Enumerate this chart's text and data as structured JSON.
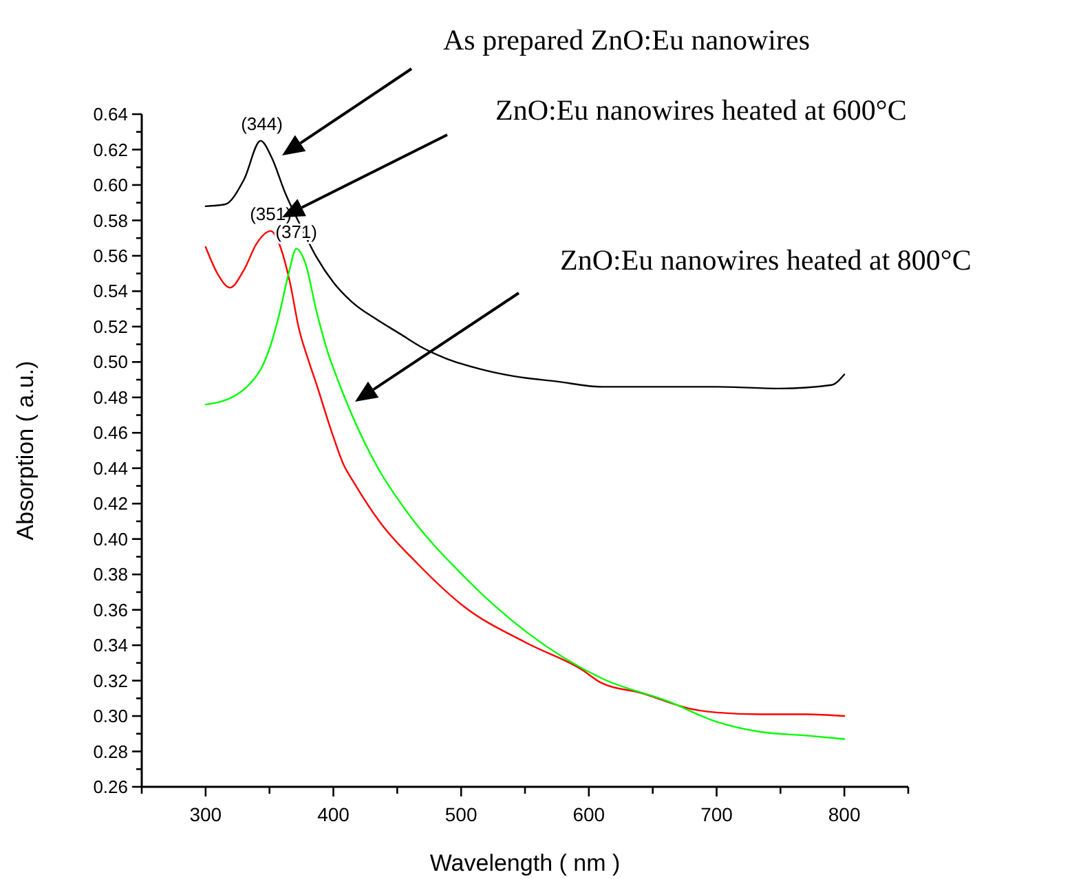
{
  "chart_data": {
    "type": "line",
    "xlabel": "Wavelength ( nm )",
    "ylabel": "Absorption ( a.u.)",
    "xlim": [
      250,
      850
    ],
    "ylim": [
      0.26,
      0.64
    ],
    "xticks": [
      {
        "value": 250,
        "label": null
      },
      300,
      {
        "value": 350,
        "label": null
      },
      400,
      {
        "value": 450,
        "label": null
      },
      500,
      {
        "value": 550,
        "label": null
      },
      600,
      {
        "value": 650,
        "label": null
      },
      700,
      {
        "value": 750,
        "label": null
      },
      800,
      {
        "value": 850,
        "label": null
      }
    ],
    "yticks": [
      {
        "value": 0.26,
        "label": "0.26"
      },
      {
        "value": 0.27,
        "label": null
      },
      {
        "value": 0.28,
        "label": "0.28"
      },
      {
        "value": 0.29,
        "label": null
      },
      {
        "value": 0.3,
        "label": "0.30"
      },
      {
        "value": 0.31,
        "label": null
      },
      {
        "value": 0.32,
        "label": "0.32"
      },
      {
        "value": 0.33,
        "label": null
      },
      {
        "value": 0.34,
        "label": "0.34"
      },
      {
        "value": 0.35,
        "label": null
      },
      {
        "value": 0.36,
        "label": "0.36"
      },
      {
        "value": 0.37,
        "label": null
      },
      {
        "value": 0.38,
        "label": "0.38"
      },
      {
        "value": 0.39,
        "label": null
      },
      {
        "value": 0.4,
        "label": "0.40"
      },
      {
        "value": 0.41,
        "label": null
      },
      {
        "value": 0.42,
        "label": "0.42"
      },
      {
        "value": 0.43,
        "label": null
      },
      {
        "value": 0.44,
        "label": "0.44"
      },
      {
        "value": 0.45,
        "label": null
      },
      {
        "value": 0.46,
        "label": "0.46"
      },
      {
        "value": 0.47,
        "label": null
      },
      {
        "value": 0.48,
        "label": "0.48"
      },
      {
        "value": 0.49,
        "label": null
      },
      {
        "value": 0.5,
        "label": "0.50"
      },
      {
        "value": 0.51,
        "label": null
      },
      {
        "value": 0.52,
        "label": "0.52"
      },
      {
        "value": 0.53,
        "label": null
      },
      {
        "value": 0.54,
        "label": "0.54"
      },
      {
        "value": 0.55,
        "label": null
      },
      {
        "value": 0.56,
        "label": "0.56"
      },
      {
        "value": 0.57,
        "label": null
      },
      {
        "value": 0.58,
        "label": "0.58"
      },
      {
        "value": 0.59,
        "label": null
      },
      {
        "value": 0.6,
        "label": "0.60"
      },
      {
        "value": 0.61,
        "label": null
      },
      {
        "value": 0.62,
        "label": "0.62"
      },
      {
        "value": 0.63,
        "label": null
      },
      {
        "value": 0.64,
        "label": "0.64"
      }
    ],
    "grid": false,
    "marker": "none",
    "line_style": "solid",
    "series": [
      {
        "color": "#000000",
        "x": [
          300,
          315,
          330,
          343,
          352,
          362,
          375,
          387,
          400,
          416,
          434,
          452,
          470,
          488,
          515,
          541,
          575,
          610,
          650,
          700,
          750,
          790,
          800
        ],
        "values": [
          0.588,
          0.589,
          0.603,
          0.625,
          0.615,
          0.596,
          0.576,
          0.559,
          0.545,
          0.533,
          0.524,
          0.516,
          0.508,
          0.502,
          0.496,
          0.492,
          0.489,
          0.486,
          0.486,
          0.486,
          0.485,
          0.487,
          0.493
        ]
      },
      {
        "color": "#ff0000",
        "x": [
          300,
          310,
          319,
          330,
          340,
          351,
          358,
          366,
          373,
          380,
          387,
          398,
          408,
          416,
          437,
          466,
          502,
          552,
          595,
          609,
          641,
          680,
          700,
          734,
          770,
          800
        ],
        "values": [
          0.565,
          0.549,
          0.542,
          0.552,
          0.567,
          0.574,
          0.566,
          0.545,
          0.519,
          0.502,
          0.487,
          0.462,
          0.442,
          0.432,
          0.409,
          0.386,
          0.362,
          0.341,
          0.326,
          0.319,
          0.313,
          0.304,
          0.302,
          0.301,
          0.301,
          0.3
        ]
      },
      {
        "color": "#00ff00",
        "x": [
          300,
          323,
          335,
          344,
          352,
          358,
          365,
          371,
          378,
          387,
          395,
          405,
          414,
          435,
          459,
          502,
          552,
          611,
          663,
          699,
          735,
          770,
          800
        ],
        "values": [
          0.476,
          0.481,
          0.488,
          0.497,
          0.512,
          0.528,
          0.55,
          0.564,
          0.556,
          0.528,
          0.507,
          0.487,
          0.471,
          0.44,
          0.414,
          0.379,
          0.347,
          0.321,
          0.308,
          0.297,
          0.291,
          0.289,
          0.287
        ]
      }
    ],
    "annotations": [
      {
        "text": "(344)",
        "x": 344,
        "y": 0.625
      },
      {
        "text": "(351)",
        "x": 351,
        "y": 0.574
      },
      {
        "text": "(371)",
        "x": 371,
        "y": 0.564
      },
      "As prepared ZnO:Eu nanowires",
      "ZnO:Eu nanowires heated at 600°C",
      "ZnO:Eu nanowires heated at 800°C"
    ]
  }
}
